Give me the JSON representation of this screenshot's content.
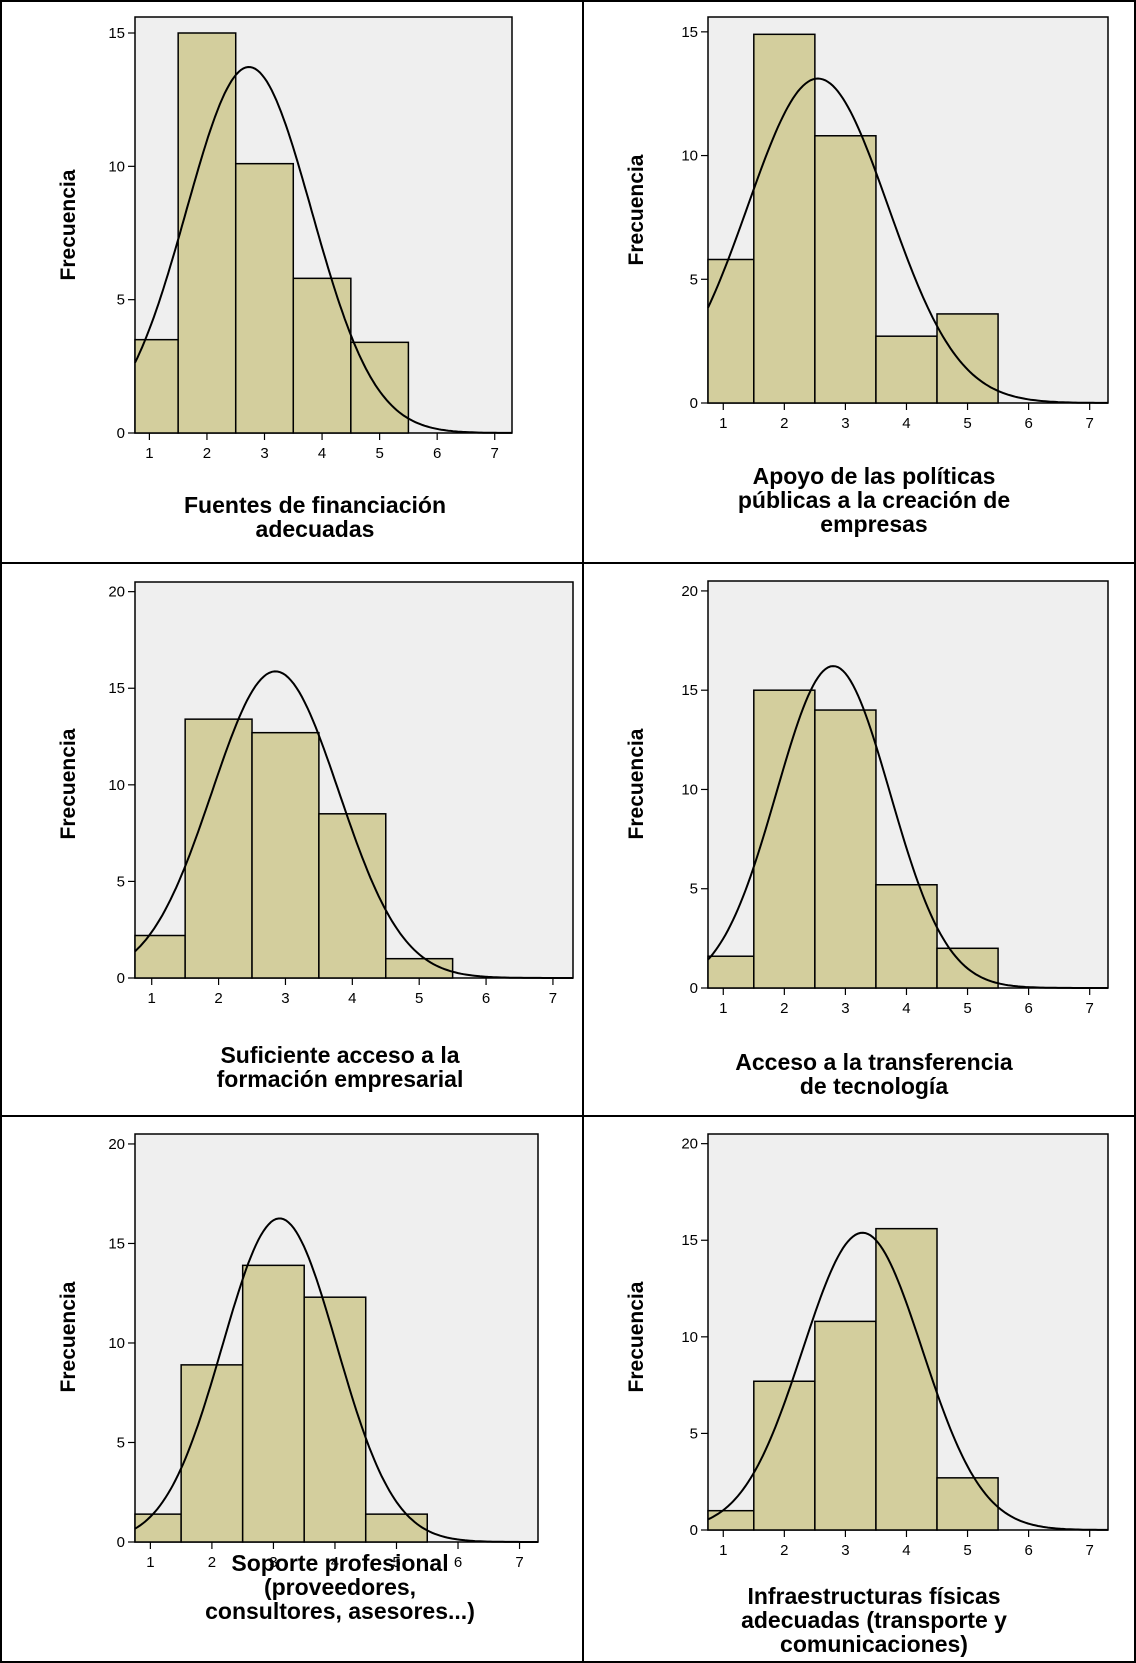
{
  "chart_data": [
    {
      "type": "bar",
      "xlabel": "Fuentes de financiación\nadecuadas",
      "ylabel": "Frecuencia",
      "categories": [
        1,
        2,
        3,
        4,
        5,
        6,
        7
      ],
      "values": [
        3.5,
        15,
        10.1,
        5.8,
        3.4,
        0,
        0
      ],
      "xlim": [
        0.75,
        7.3
      ],
      "ylim": [
        0,
        15.6
      ],
      "yticks": [
        0,
        5,
        10,
        15
      ],
      "normal_curve": {
        "mean": 2.73,
        "sd": 1.09,
        "n": 37.5
      }
    },
    {
      "type": "bar",
      "xlabel": "Apoyo de las políticas\npúblicas a la creación de\nempresas",
      "ylabel": "Frecuencia",
      "categories": [
        1,
        2,
        3,
        4,
        5,
        6,
        7
      ],
      "values": [
        5.8,
        14.9,
        10.8,
        2.7,
        3.6,
        0,
        0
      ],
      "xlim": [
        0.75,
        7.3
      ],
      "ylim": [
        0,
        15.6
      ],
      "yticks": [
        0,
        5,
        10,
        15
      ],
      "normal_curve": {
        "mean": 2.55,
        "sd": 1.15,
        "n": 37.8
      }
    },
    {
      "type": "bar",
      "xlabel": "Suficiente acceso a la\nformación empresarial",
      "ylabel": "Frecuencia",
      "categories": [
        1,
        2,
        3,
        4,
        5,
        6,
        7
      ],
      "values": [
        2.2,
        13.4,
        12.7,
        8.5,
        1.0,
        0,
        0
      ],
      "xlim": [
        0.75,
        7.3
      ],
      "ylim": [
        0,
        20.5
      ],
      "yticks": [
        0,
        5,
        10,
        15,
        20
      ],
      "normal_curve": {
        "mean": 2.85,
        "sd": 0.95,
        "n": 37.8
      }
    },
    {
      "type": "bar",
      "xlabel": "Acceso a la transferencia\nde tecnología",
      "ylabel": "Frecuencia",
      "categories": [
        1,
        2,
        3,
        4,
        5,
        6,
        7
      ],
      "values": [
        1.6,
        15,
        14,
        5.2,
        2.0,
        0,
        0
      ],
      "xlim": [
        0.75,
        7.3
      ],
      "ylim": [
        0,
        20.5
      ],
      "yticks": [
        0,
        5,
        10,
        15,
        20
      ],
      "normal_curve": {
        "mean": 2.8,
        "sd": 0.93,
        "n": 37.8
      }
    },
    {
      "type": "bar",
      "xlabel": "Soporte profesional\n(proveedores,\nconsultores, asesores...)",
      "ylabel": "Frecuencia",
      "categories": [
        1,
        2,
        3,
        4,
        5,
        6,
        7
      ],
      "values": [
        1.4,
        8.9,
        13.9,
        12.3,
        1.4,
        0,
        0
      ],
      "xlim": [
        0.75,
        7.3
      ],
      "ylim": [
        0,
        20.5
      ],
      "yticks": [
        0,
        5,
        10,
        15,
        20
      ],
      "normal_curve": {
        "mean": 3.1,
        "sd": 0.93,
        "n": 37.9
      }
    },
    {
      "type": "bar",
      "xlabel": "Infraestructuras físicas\nadecuadas (transporte y\ncomunicaciones)",
      "ylabel": "Frecuencia",
      "categories": [
        1,
        2,
        3,
        4,
        5,
        6,
        7
      ],
      "values": [
        1.0,
        7.7,
        10.8,
        15.6,
        2.7,
        0,
        0
      ],
      "xlim": [
        0.75,
        7.3
      ],
      "ylim": [
        0,
        20.5
      ],
      "yticks": [
        0,
        5,
        10,
        15,
        20
      ],
      "normal_curve": {
        "mean": 3.28,
        "sd": 0.98,
        "n": 37.8
      }
    }
  ]
}
